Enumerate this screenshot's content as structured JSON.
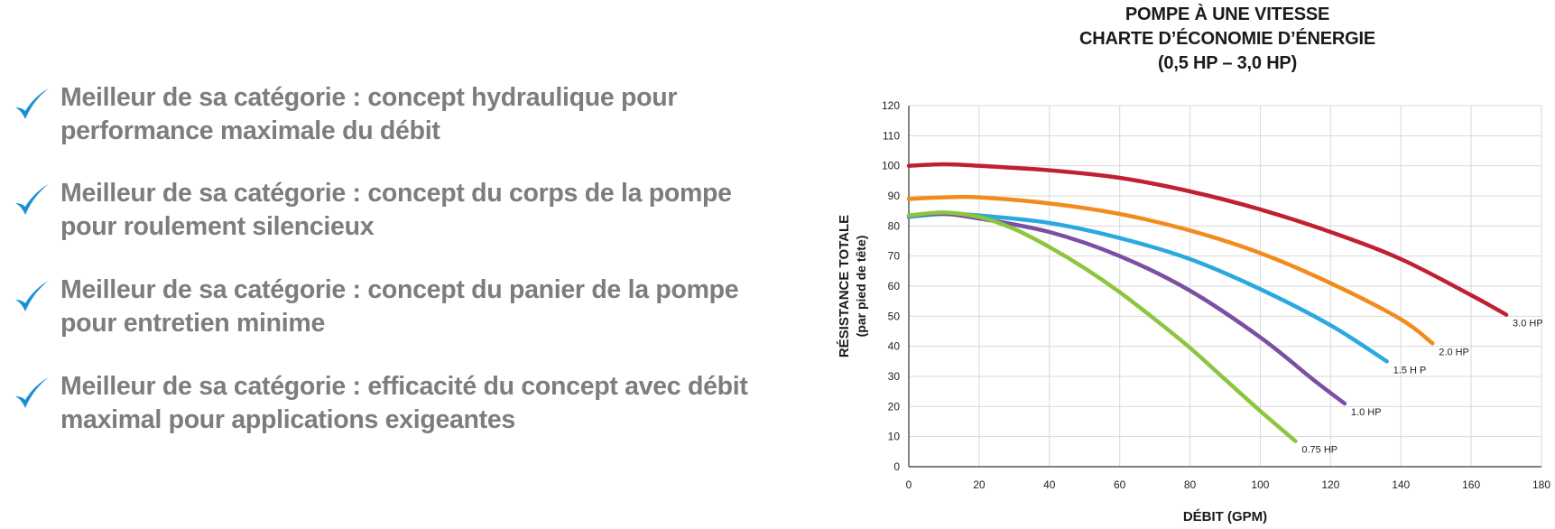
{
  "features": [
    {
      "line1": "Meilleur de sa catégorie : concept hydraulique pour",
      "line2": "performance maximale du débit"
    },
    {
      "line1": "Meilleur de sa catégorie : concept du corps de la pompe",
      "line2": "pour roulement silencieux"
    },
    {
      "line1": "Meilleur de sa catégorie : concept du panier de la pompe",
      "line2": "pour entretien minime"
    },
    {
      "line1": "Meilleur de sa catégorie : efficacité du concept avec débit",
      "line2": "maximal pour applications exigeantes"
    }
  ],
  "colors": {
    "check": "#1a8fd6",
    "feature_text": "#7d7d7d",
    "grid": "#d9d9d9",
    "axis": "#333333"
  },
  "chart_data": {
    "type": "line",
    "title": [
      "POMPE À UNE VITESSE",
      "CHARTE D’ÉCONOMIE D’ÉNERGIE",
      "(0,5 HP – 3,0 HP)"
    ],
    "xlabel": "DÉBIT (GPM)",
    "ylabel": [
      "RÉSISTANCE TOTALE",
      "(par pied de tête)"
    ],
    "xlim": [
      0,
      180
    ],
    "ylim": [
      0,
      120
    ],
    "xticks": [
      0,
      20,
      40,
      60,
      80,
      100,
      120,
      140,
      160,
      180
    ],
    "yticks": [
      0,
      10,
      20,
      30,
      40,
      50,
      60,
      70,
      80,
      90,
      100,
      110,
      120
    ],
    "grid": true,
    "series": [
      {
        "name": "3.0 HP",
        "color": "#c0202f",
        "x": [
          0,
          10,
          20,
          40,
          60,
          80,
          100,
          120,
          140,
          160,
          170
        ],
        "y": [
          100,
          100.5,
          100,
          98.5,
          96,
          91.5,
          85.5,
          78,
          69,
          57,
          50.5
        ]
      },
      {
        "name": "2.0 HP",
        "color": "#f28b1e",
        "x": [
          0,
          10,
          20,
          40,
          60,
          80,
          100,
          120,
          140,
          149
        ],
        "y": [
          89,
          89.5,
          89.5,
          87.5,
          84,
          78.5,
          71,
          61,
          49,
          41
        ]
      },
      {
        "name": "1.5 H  P",
        "color": "#2aa9e0",
        "x": [
          0,
          10,
          20,
          40,
          60,
          80,
          100,
          120,
          136
        ],
        "y": [
          83,
          84,
          83.5,
          81,
          76,
          69,
          59,
          47,
          35
        ]
      },
      {
        "name": "1.0 HP",
        "color": "#7b4fa1",
        "x": [
          0,
          10,
          20,
          40,
          60,
          80,
          100,
          115,
          124
        ],
        "y": [
          83.5,
          84,
          82.5,
          78,
          70,
          58.5,
          43,
          29,
          21
        ]
      },
      {
        "name": "0.75 HP",
        "color": "#8cc63f",
        "x": [
          0,
          10,
          20,
          30,
          40,
          50,
          60,
          70,
          80,
          90,
          100,
          110
        ],
        "y": [
          83.5,
          84.5,
          83,
          79,
          73,
          66,
          58,
          49,
          39.5,
          29,
          18.5,
          8.5
        ]
      }
    ]
  }
}
